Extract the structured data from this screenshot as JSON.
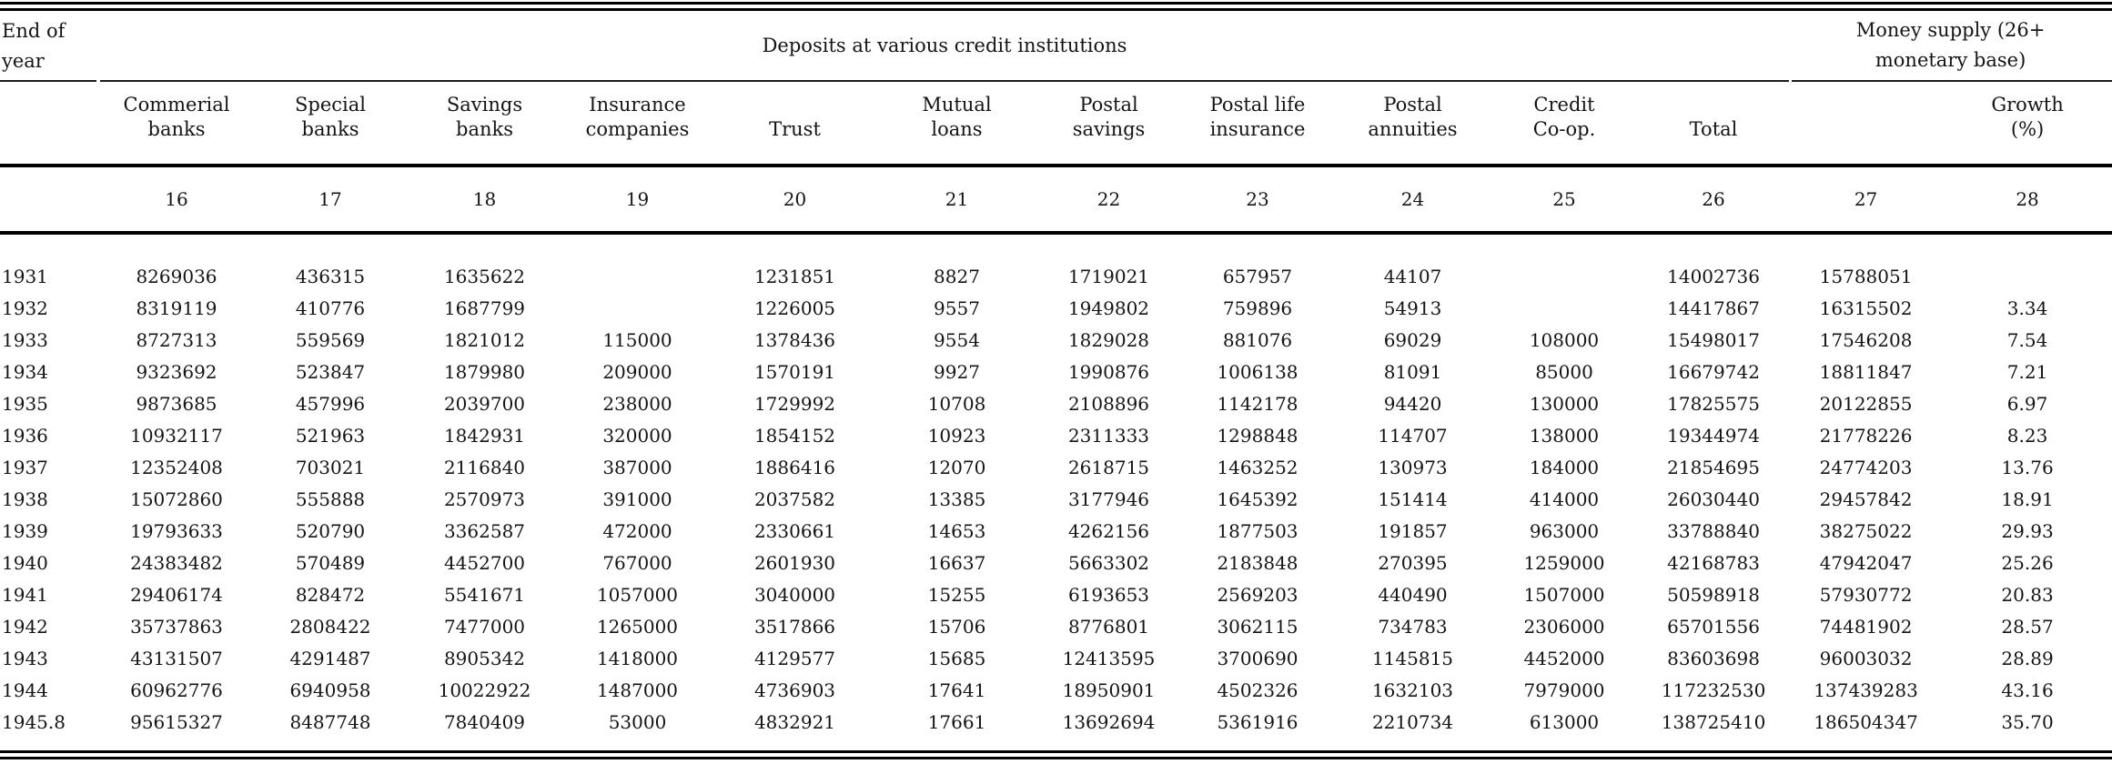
{
  "page": {
    "background": "#ffffff",
    "text_color": "#141414"
  },
  "table": {
    "group_headers": {
      "end_of_year": {
        "line1": "End of",
        "line2": "year"
      },
      "deposits": "Deposits at various credit institutions",
      "money_supply": {
        "line1": "Money supply (26+",
        "line2": "monetary base)"
      }
    },
    "columns": [
      {
        "line1": "Commerial",
        "line2": "banks",
        "number": "16"
      },
      {
        "line1": "Special",
        "line2": "banks",
        "number": "17"
      },
      {
        "line1": "Savings",
        "line2": "banks",
        "number": "18"
      },
      {
        "line1": "Insurance",
        "line2": "companies",
        "number": "19"
      },
      {
        "line1": "",
        "line2": "Trust",
        "number": "20"
      },
      {
        "line1": "Mutual",
        "line2": "loans",
        "number": "21"
      },
      {
        "line1": "Postal",
        "line2": "savings",
        "number": "22"
      },
      {
        "line1": "Postal life",
        "line2": "insurance",
        "number": "23"
      },
      {
        "line1": "Postal",
        "line2": "annuities",
        "number": "24"
      },
      {
        "line1": "Credit",
        "line2": "Co-op.",
        "number": "25"
      },
      {
        "line1": "",
        "line2": "Total",
        "number": "26"
      },
      {
        "line1": "",
        "line2": "",
        "number": "27"
      },
      {
        "line1": "Growth",
        "line2": "(%)",
        "number": "28"
      }
    ],
    "rows": [
      {
        "year": "1931",
        "values": [
          "8269036",
          "436315",
          "1635622",
          "",
          "1231851",
          "8827",
          "1719021",
          "657957",
          "44107",
          "",
          "14002736",
          "15788051",
          ""
        ]
      },
      {
        "year": "1932",
        "values": [
          "8319119",
          "410776",
          "1687799",
          "",
          "1226005",
          "9557",
          "1949802",
          "759896",
          "54913",
          "",
          "14417867",
          "16315502",
          "3.34"
        ]
      },
      {
        "year": "1933",
        "values": [
          "8727313",
          "559569",
          "1821012",
          "115000",
          "1378436",
          "9554",
          "1829028",
          "881076",
          "69029",
          "108000",
          "15498017",
          "17546208",
          "7.54"
        ]
      },
      {
        "year": "1934",
        "values": [
          "9323692",
          "523847",
          "1879980",
          "209000",
          "1570191",
          "9927",
          "1990876",
          "1006138",
          "81091",
          "85000",
          "16679742",
          "18811847",
          "7.21"
        ]
      },
      {
        "year": "1935",
        "values": [
          "9873685",
          "457996",
          "2039700",
          "238000",
          "1729992",
          "10708",
          "2108896",
          "1142178",
          "94420",
          "130000",
          "17825575",
          "20122855",
          "6.97"
        ]
      },
      {
        "year": "1936",
        "values": [
          "10932117",
          "521963",
          "1842931",
          "320000",
          "1854152",
          "10923",
          "2311333",
          "1298848",
          "114707",
          "138000",
          "19344974",
          "21778226",
          "8.23"
        ]
      },
      {
        "year": "1937",
        "values": [
          "12352408",
          "703021",
          "2116840",
          "387000",
          "1886416",
          "12070",
          "2618715",
          "1463252",
          "130973",
          "184000",
          "21854695",
          "24774203",
          "13.76"
        ]
      },
      {
        "year": "1938",
        "values": [
          "15072860",
          "555888",
          "2570973",
          "391000",
          "2037582",
          "13385",
          "3177946",
          "1645392",
          "151414",
          "414000",
          "26030440",
          "29457842",
          "18.91"
        ]
      },
      {
        "year": "1939",
        "values": [
          "19793633",
          "520790",
          "3362587",
          "472000",
          "2330661",
          "14653",
          "4262156",
          "1877503",
          "191857",
          "963000",
          "33788840",
          "38275022",
          "29.93"
        ]
      },
      {
        "year": "1940",
        "values": [
          "24383482",
          "570489",
          "4452700",
          "767000",
          "2601930",
          "16637",
          "5663302",
          "2183848",
          "270395",
          "1259000",
          "42168783",
          "47942047",
          "25.26"
        ]
      },
      {
        "year": "1941",
        "values": [
          "29406174",
          "828472",
          "5541671",
          "1057000",
          "3040000",
          "15255",
          "6193653",
          "2569203",
          "440490",
          "1507000",
          "50598918",
          "57930772",
          "20.83"
        ]
      },
      {
        "year": "1942",
        "values": [
          "35737863",
          "2808422",
          "7477000",
          "1265000",
          "3517866",
          "15706",
          "8776801",
          "3062115",
          "734783",
          "2306000",
          "65701556",
          "74481902",
          "28.57"
        ]
      },
      {
        "year": "1943",
        "values": [
          "43131507",
          "4291487",
          "8905342",
          "1418000",
          "4129577",
          "15685",
          "12413595",
          "3700690",
          "1145815",
          "4452000",
          "83603698",
          "96003032",
          "28.89"
        ]
      },
      {
        "year": "1944",
        "values": [
          "60962776",
          "6940958",
          "10022922",
          "1487000",
          "4736903",
          "17641",
          "18950901",
          "4502326",
          "1632103",
          "7979000",
          "117232530",
          "137439283",
          "43.16"
        ]
      },
      {
        "year": "1945.8",
        "values": [
          "95615327",
          "8487748",
          "7840409",
          "53000",
          "4832921",
          "17661",
          "13692694",
          "5361916",
          "2210734",
          "613000",
          "138725410",
          "186504347",
          "35.70"
        ]
      }
    ]
  }
}
